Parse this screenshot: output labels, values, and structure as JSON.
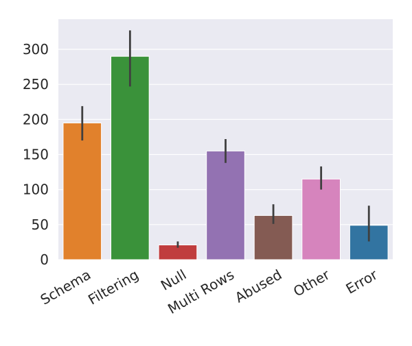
{
  "chart_data": {
    "type": "bar",
    "title": "",
    "xlabel": "",
    "ylabel": "",
    "categories": [
      "Schema",
      "Filtering",
      "Null",
      "Multi Rows",
      "Abused",
      "Other",
      "Error"
    ],
    "values": [
      195,
      290,
      21,
      155,
      63,
      115,
      49
    ],
    "error_low": [
      170,
      247,
      17,
      138,
      51,
      100,
      26
    ],
    "error_high": [
      219,
      327,
      26,
      172,
      79,
      133,
      77
    ],
    "colors": [
      "#e1812c",
      "#3a923a",
      "#c03d3e",
      "#9372b2",
      "#845b53",
      "#d684bd",
      "#3274a1"
    ],
    "yticks": [
      0,
      50,
      100,
      150,
      200,
      250,
      300
    ],
    "ylim": [
      0,
      343
    ],
    "grid": true,
    "background": "#eaeaf2",
    "error_bar_color": "#3f3f3f"
  }
}
